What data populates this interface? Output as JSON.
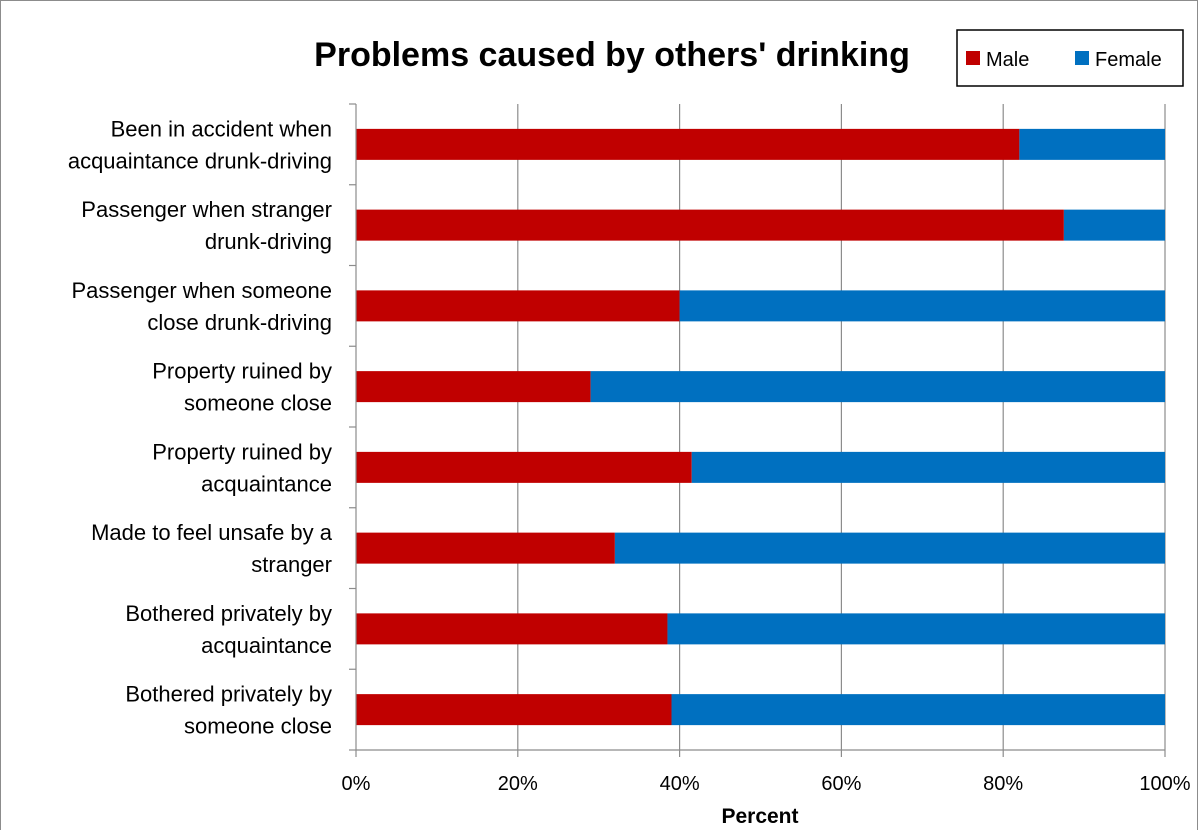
{
  "chart_data": {
    "type": "bar",
    "orientation": "horizontal",
    "stacked": "percent",
    "title": "Problems caused by others' drinking",
    "xlabel": "Percent",
    "ylabel": "",
    "xlim": [
      0,
      100
    ],
    "x_ticks": [
      "0%",
      "20%",
      "40%",
      "60%",
      "80%",
      "100%"
    ],
    "grid": "vertical major gridlines",
    "legend_position": "top-right",
    "categories": [
      [
        "Been in accident when",
        "acquaintance drunk-driving"
      ],
      [
        "Passenger when stranger",
        "drunk-driving"
      ],
      [
        "Passenger when someone",
        "close drunk-driving"
      ],
      [
        "Property ruined by",
        "someone close"
      ],
      [
        "Property ruined by",
        "acquaintance"
      ],
      [
        "Made to feel unsafe by a",
        "stranger"
      ],
      [
        "Bothered privately by",
        "acquaintance"
      ],
      [
        "Bothered privately by",
        "someone close"
      ]
    ],
    "series": [
      {
        "name": "Male",
        "color": "#C00000",
        "values": [
          82,
          87.5,
          40,
          29,
          41.5,
          32,
          38.5,
          39
        ]
      },
      {
        "name": "Female",
        "color": "#0070C0",
        "values": [
          18,
          12.5,
          60,
          71,
          58.5,
          68,
          61.5,
          61
        ]
      }
    ]
  }
}
